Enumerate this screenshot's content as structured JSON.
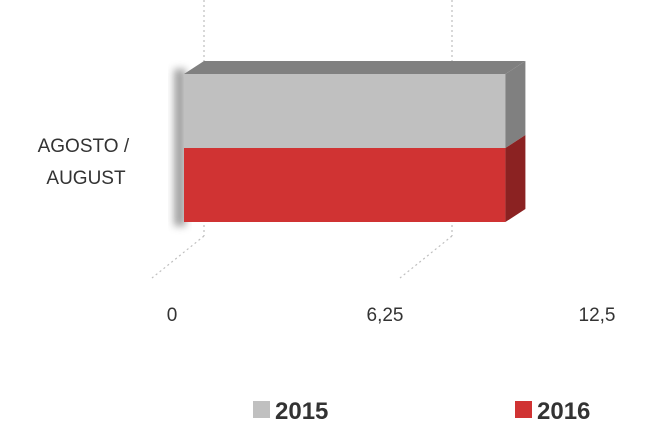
{
  "chart_data": {
    "type": "bar",
    "orientation": "horizontal",
    "style": "3d",
    "categories": [
      "AGOSTO / AUGUST"
    ],
    "category_lines": [
      "AGOSTO /",
      "AUGUST"
    ],
    "series": [
      {
        "name": "2015",
        "values": [
          8.1
        ],
        "color": "#c0c0c0",
        "top_color": "#808080",
        "side_color": "#808080"
      },
      {
        "name": "2016",
        "values": [
          8.1
        ],
        "color": "#d03333",
        "top_color": "#d03333",
        "side_color": "#8b2222"
      }
    ],
    "x_ticks": [
      0,
      6.25,
      12.5
    ],
    "x_tick_labels": [
      "0",
      "6,25",
      "12,5"
    ],
    "xlim": [
      0,
      12.5
    ],
    "grid": true,
    "legend": "bottom",
    "title": "",
    "xlabel": "",
    "ylabel": ""
  }
}
